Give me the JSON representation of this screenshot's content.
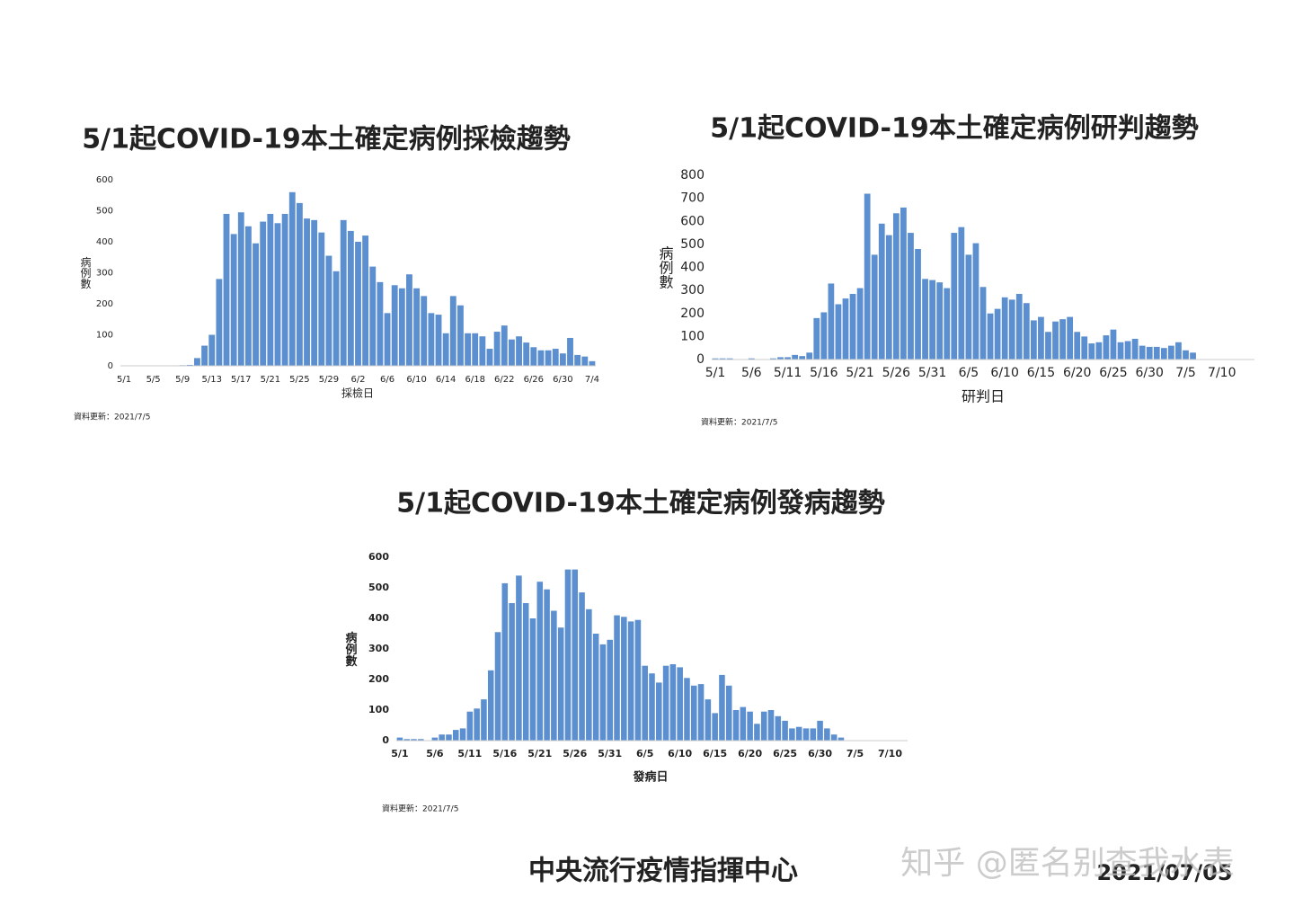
{
  "chart_data": [
    {
      "type": "bar",
      "title": "5/1起COVID-19本土確定病例採檢趨勢",
      "xlabel": "採檢日",
      "ylabel": "病例數",
      "note": "資料更新：2021/7/5",
      "color": "#5b8fcf",
      "categories": [
        "5/1",
        null,
        null,
        null,
        "5/5",
        null,
        null,
        null,
        "5/9",
        null,
        null,
        null,
        "5/13",
        null,
        null,
        null,
        "5/17",
        null,
        null,
        null,
        "5/21",
        null,
        null,
        null,
        "5/25",
        null,
        null,
        null,
        "5/29",
        null,
        null,
        null,
        "6/2",
        null,
        null,
        null,
        "6/6",
        null,
        null,
        null,
        "6/10",
        null,
        null,
        null,
        "6/14",
        null,
        null,
        null,
        "6/18",
        null,
        null,
        null,
        "6/22",
        null,
        null,
        null,
        "6/26",
        null,
        null,
        null,
        "6/30",
        null,
        null,
        null,
        "7/4"
      ],
      "values": [
        0,
        0,
        0,
        0,
        0,
        0,
        0,
        0,
        2,
        3,
        25,
        65,
        100,
        280,
        490,
        425,
        495,
        450,
        395,
        465,
        490,
        460,
        490,
        560,
        525,
        475,
        470,
        430,
        355,
        305,
        470,
        435,
        400,
        420,
        320,
        270,
        170,
        260,
        250,
        295,
        250,
        225,
        170,
        165,
        105,
        225,
        195,
        105,
        105,
        95,
        55,
        110,
        130,
        85,
        95,
        75,
        60,
        50,
        50,
        55,
        40,
        90,
        35,
        30,
        15
      ],
      "ylim": [
        0,
        600
      ],
      "yticks": [
        0,
        100,
        200,
        300,
        400,
        500,
        600
      ]
    },
    {
      "type": "bar",
      "title": "5/1起COVID-19本土確定病例研判趨勢",
      "xlabel": "研判日",
      "ylabel": "病例數",
      "note": "資料更新：2021/7/5",
      "color": "#5b8fcf",
      "categories": [
        "5/1",
        null,
        null,
        null,
        null,
        "5/6",
        null,
        null,
        null,
        null,
        "5/11",
        null,
        null,
        null,
        null,
        "5/16",
        null,
        null,
        null,
        null,
        "5/21",
        null,
        null,
        null,
        null,
        "5/26",
        null,
        null,
        null,
        null,
        "5/31",
        null,
        null,
        null,
        null,
        "6/5",
        null,
        null,
        null,
        null,
        "6/10",
        null,
        null,
        null,
        null,
        "6/15",
        null,
        null,
        null,
        null,
        "6/20",
        null,
        null,
        null,
        null,
        "6/25",
        null,
        null,
        null,
        null,
        "6/30",
        null,
        null,
        null,
        null,
        "7/5",
        null,
        null,
        null,
        null,
        "7/10",
        null,
        null,
        null,
        null
      ],
      "values": [
        5,
        5,
        5,
        0,
        0,
        5,
        0,
        0,
        5,
        10,
        10,
        20,
        15,
        30,
        180,
        205,
        330,
        240,
        265,
        285,
        310,
        720,
        455,
        590,
        540,
        635,
        660,
        550,
        480,
        350,
        345,
        335,
        310,
        550,
        575,
        455,
        505,
        315,
        200,
        220,
        270,
        260,
        285,
        245,
        170,
        185,
        120,
        165,
        175,
        185,
        120,
        100,
        70,
        75,
        105,
        130,
        75,
        80,
        90,
        60,
        55,
        55,
        50,
        60,
        75,
        40,
        30,
        0,
        0,
        0,
        0,
        0,
        0,
        0,
        0
      ],
      "ylim": [
        0,
        800
      ],
      "yticks": [
        0,
        100,
        200,
        300,
        400,
        500,
        600,
        700,
        800
      ]
    },
    {
      "type": "bar",
      "title": "5/1起COVID-19本土確定病例發病趨勢",
      "xlabel": "發病日",
      "ylabel": "病例數",
      "note": "資料更新：2021/7/5",
      "color": "#5b8fcf",
      "categories": [
        "5/1",
        null,
        null,
        null,
        null,
        "5/6",
        null,
        null,
        null,
        null,
        "5/11",
        null,
        null,
        null,
        null,
        "5/16",
        null,
        null,
        null,
        null,
        "5/21",
        null,
        null,
        null,
        null,
        "5/26",
        null,
        null,
        null,
        null,
        "5/31",
        null,
        null,
        null,
        null,
        "6/5",
        null,
        null,
        null,
        null,
        "6/10",
        null,
        null,
        null,
        null,
        "6/15",
        null,
        null,
        null,
        null,
        "6/20",
        null,
        null,
        null,
        null,
        "6/25",
        null,
        null,
        null,
        null,
        "6/30",
        null,
        null,
        null,
        null,
        "7/5",
        null,
        null,
        null,
        null,
        "7/10",
        null,
        null
      ],
      "values": [
        10,
        5,
        5,
        5,
        0,
        10,
        20,
        20,
        35,
        40,
        95,
        105,
        135,
        230,
        355,
        515,
        450,
        540,
        450,
        400,
        520,
        495,
        425,
        370,
        560,
        560,
        485,
        430,
        350,
        315,
        330,
        410,
        405,
        390,
        395,
        245,
        220,
        190,
        245,
        250,
        240,
        205,
        180,
        185,
        135,
        90,
        215,
        180,
        100,
        110,
        95,
        55,
        95,
        100,
        80,
        65,
        40,
        45,
        40,
        40,
        65,
        40,
        20,
        10,
        0,
        0,
        0,
        0,
        0,
        0,
        0,
        0,
        0
      ],
      "ylim": [
        0,
        600
      ],
      "yticks": [
        0,
        100,
        200,
        300,
        400,
        500,
        600
      ]
    }
  ],
  "footer": {
    "organization": "中央流行疫情指揮中心",
    "date": "2021/07/05",
    "watermark": "知乎 @匿名别查我水表"
  }
}
